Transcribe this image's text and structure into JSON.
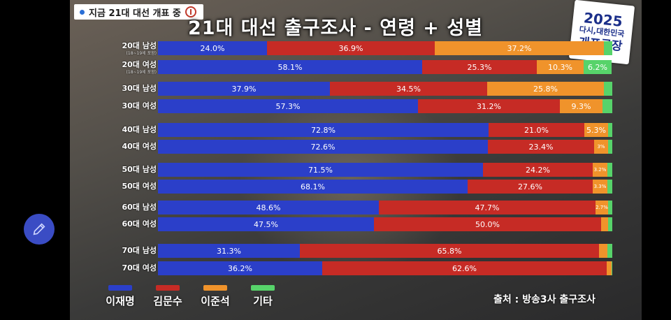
{
  "overlay": {
    "live_tag": "지금 21대 대선 개표 중",
    "logo": {
      "year": "2025",
      "line2": "다시,대한민국",
      "line3": "개표공장"
    },
    "source": "출처 : 방송3사 출구조사"
  },
  "colors": {
    "lee_jm": "#2b3fc9",
    "kim_ms": "#c62b25",
    "lee_js": "#f0932b",
    "other": "#57d36a"
  },
  "chart_data": {
    "type": "bar",
    "orientation": "horizontal",
    "stacked": true,
    "title": "21대 대선 출구조사 - 연령 + 성별",
    "categories": [
      "20대 남성",
      "20대 여성",
      "30대 남성",
      "30대 여성",
      "40대 남성",
      "40대 여성",
      "50대 남성",
      "50대 여성",
      "60대 남성",
      "60대 여성",
      "70대 남성",
      "70대 여성"
    ],
    "category_notes": [
      "(18~19세 포함)",
      "(18~19세 포함)",
      "",
      "",
      "",
      "",
      "",
      "",
      "",
      "",
      "",
      ""
    ],
    "series": [
      {
        "name": "이재명",
        "values": [
          24.0,
          58.1,
          37.9,
          57.3,
          72.8,
          72.6,
          71.5,
          68.1,
          48.6,
          47.5,
          31.3,
          36.2
        ]
      },
      {
        "name": "김문수",
        "values": [
          36.9,
          25.3,
          34.5,
          31.2,
          21.0,
          23.4,
          24.2,
          27.6,
          47.7,
          50.0,
          65.8,
          62.6
        ]
      },
      {
        "name": "이준석",
        "values": [
          37.2,
          10.3,
          25.8,
          9.3,
          5.3,
          3.0,
          3.2,
          3.3,
          2.7,
          1.5,
          1.8,
          1.0
        ]
      },
      {
        "name": "기타",
        "values": [
          1.9,
          6.2,
          1.8,
          2.2,
          0.9,
          1.0,
          1.1,
          1.0,
          1.0,
          1.0,
          1.1,
          0.2
        ]
      }
    ],
    "value_labels": [
      [
        "24.0%",
        "36.9%",
        "37.2%",
        ""
      ],
      [
        "58.1%",
        "25.3%",
        "10.3%",
        "6.2%"
      ],
      [
        "37.9%",
        "34.5%",
        "25.8%",
        ""
      ],
      [
        "57.3%",
        "31.2%",
        "9.3%",
        ""
      ],
      [
        "72.8%",
        "21.0%",
        "5.3%",
        ""
      ],
      [
        "72.6%",
        "23.4%",
        "3%",
        ""
      ],
      [
        "71.5%",
        "24.2%",
        "3.2%",
        ""
      ],
      [
        "68.1%",
        "27.6%",
        "3.3%",
        ""
      ],
      [
        "48.6%",
        "47.7%",
        "2.7%",
        ""
      ],
      [
        "47.5%",
        "50.0%",
        "",
        ""
      ],
      [
        "31.3%",
        "65.8%",
        "",
        ""
      ],
      [
        "36.2%",
        "62.6%",
        "",
        ""
      ]
    ],
    "xlim": [
      0,
      100
    ],
    "legend_position": "bottom-left"
  }
}
